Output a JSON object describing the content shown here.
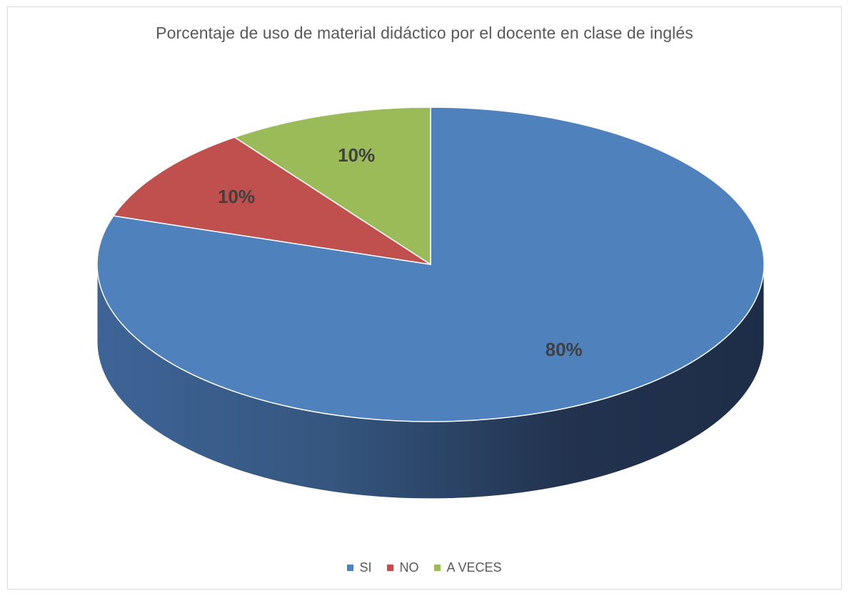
{
  "chart_data": {
    "type": "pie",
    "title": "Porcentaje de uso de material didáctico por el docente  en clase  de inglés",
    "categories": [
      "SI",
      "NO",
      "A VECES"
    ],
    "values": [
      80,
      10,
      10
    ],
    "data_labels": [
      "80%",
      "10%",
      "10%"
    ],
    "colors": [
      "#4f81bd",
      "#c0504d",
      "#9bbb59"
    ],
    "style": "3d",
    "legend_position": "bottom"
  }
}
